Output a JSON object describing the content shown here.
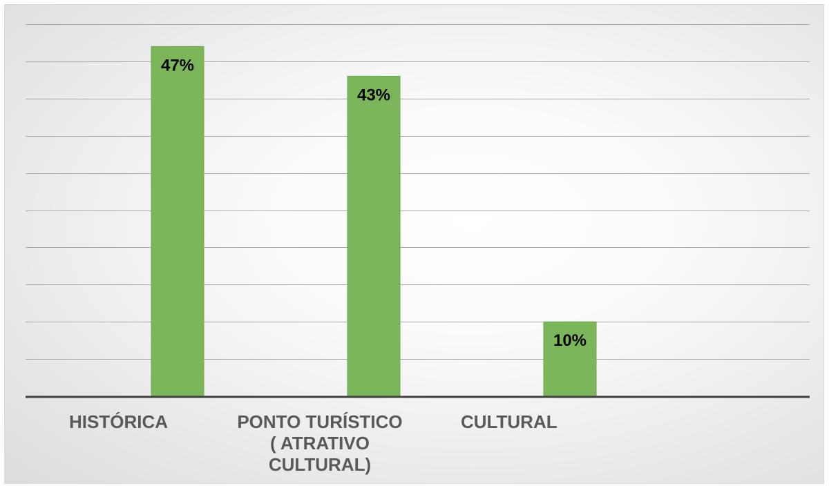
{
  "chart_data": {
    "type": "bar",
    "categories": [
      "HISTÓRICA",
      "PONTO TURÍSTICO ( ATRATIVO CULTURAL)",
      "CULTURAL"
    ],
    "category_lines": [
      [
        "HISTÓRICA"
      ],
      [
        "PONTO TURÍSTICO",
        "( ATRATIVO",
        "CULTURAL)"
      ],
      [
        "CULTURAL"
      ]
    ],
    "values": [
      47,
      43,
      10
    ],
    "data_labels": [
      "47%",
      "43%",
      "10%"
    ],
    "ylim": [
      0,
      50
    ],
    "grid": true,
    "legend": "none",
    "title": "",
    "xlabel": "",
    "ylabel": "",
    "colors": {
      "bar": "#7cb65a",
      "bar_edge": "#6aa84f",
      "grid": "#a6a6a6",
      "axis": "#404040"
    }
  }
}
